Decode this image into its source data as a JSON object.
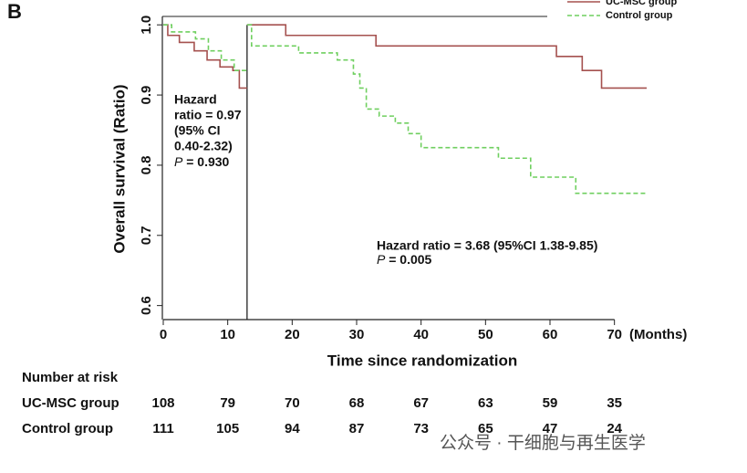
{
  "panel_label": "B",
  "chart_data": {
    "type": "step",
    "ylabel": "Overall survival (Ratio)",
    "xlabel": "Time since randomization",
    "x_unit": "(Months)",
    "xlim": [
      0,
      75
    ],
    "ylim": [
      0.58,
      1.012
    ],
    "xticks": [
      0,
      10,
      20,
      30,
      40,
      50,
      60,
      70
    ],
    "yticks": [
      {
        "value": 0.6,
        "label": "0.6"
      },
      {
        "value": 0.7,
        "label": "0.7"
      },
      {
        "value": 0.8,
        "label": "0.8"
      },
      {
        "value": 0.9,
        "label": "0.9"
      },
      {
        "value": 1,
        "label": "1.0"
      }
    ],
    "reference_x": 13,
    "series": [
      {
        "name": "UC-MSC group",
        "color": "#a5514f",
        "dash": false,
        "x": [
          0,
          0.7,
          0.7,
          2.5,
          2.5,
          4.8,
          4.8,
          6.8,
          6.8,
          8.8,
          8.8,
          10.8,
          10.8,
          11.8,
          11.8,
          13,
          null,
          13,
          19,
          19,
          33,
          33,
          61,
          61,
          65,
          65,
          68,
          68,
          75
        ],
        "values": [
          1,
          1,
          0.985,
          0.985,
          0.975,
          0.975,
          0.963,
          0.963,
          0.95,
          0.95,
          0.94,
          0.94,
          0.935,
          0.935,
          0.91,
          0.91,
          null,
          1,
          1,
          0.985,
          0.985,
          0.97,
          0.97,
          0.955,
          0.955,
          0.935,
          0.935,
          0.91,
          0.91
        ]
      },
      {
        "name": "Control group",
        "color": "#6fcf5f",
        "dash": true,
        "x": [
          0,
          1.3,
          1.3,
          5,
          5,
          7,
          7,
          9,
          9,
          11,
          11,
          13,
          null,
          13,
          13.7,
          13.7,
          21,
          21,
          27,
          27,
          29.5,
          29.5,
          30.5,
          30.5,
          31.5,
          31.5,
          33.5,
          33.5,
          36,
          36,
          38,
          38,
          40,
          40,
          52,
          52,
          57,
          57,
          64,
          64,
          75
        ],
        "values": [
          1,
          1,
          0.99,
          0.99,
          0.98,
          0.98,
          0.963,
          0.963,
          0.95,
          0.95,
          0.935,
          0.935,
          null,
          1,
          1,
          0.97,
          0.97,
          0.96,
          0.96,
          0.95,
          0.95,
          0.93,
          0.93,
          0.91,
          0.91,
          0.88,
          0.88,
          0.87,
          0.87,
          0.86,
          0.86,
          0.845,
          0.845,
          0.825,
          0.825,
          0.81,
          0.81,
          0.783,
          0.783,
          0.76,
          0.76
        ]
      }
    ],
    "annotations": [
      {
        "lines": [
          "Hazard",
          "ratio = 0.97",
          "(95% CI",
          " 0.40-2.32)"
        ],
        "p_label": "P",
        "p_value": " = 0.930"
      },
      {
        "lines": [
          "Hazard ratio = 3.68 (95%CI 1.38-9.85)"
        ],
        "p_label": "P",
        "p_value": " = 0.005"
      }
    ]
  },
  "risk_table": {
    "title": "Number at risk",
    "rows": [
      {
        "label": "UC-MSC  group",
        "counts": [
          "108",
          "79",
          "70",
          "68",
          "67",
          "63",
          "59",
          "35"
        ]
      },
      {
        "label": "Control group",
        "counts": [
          "111",
          "105",
          "94",
          "87",
          "73",
          "65",
          "47",
          "24"
        ]
      }
    ]
  },
  "watermark": "公众号 · 干细胞与再生医学"
}
